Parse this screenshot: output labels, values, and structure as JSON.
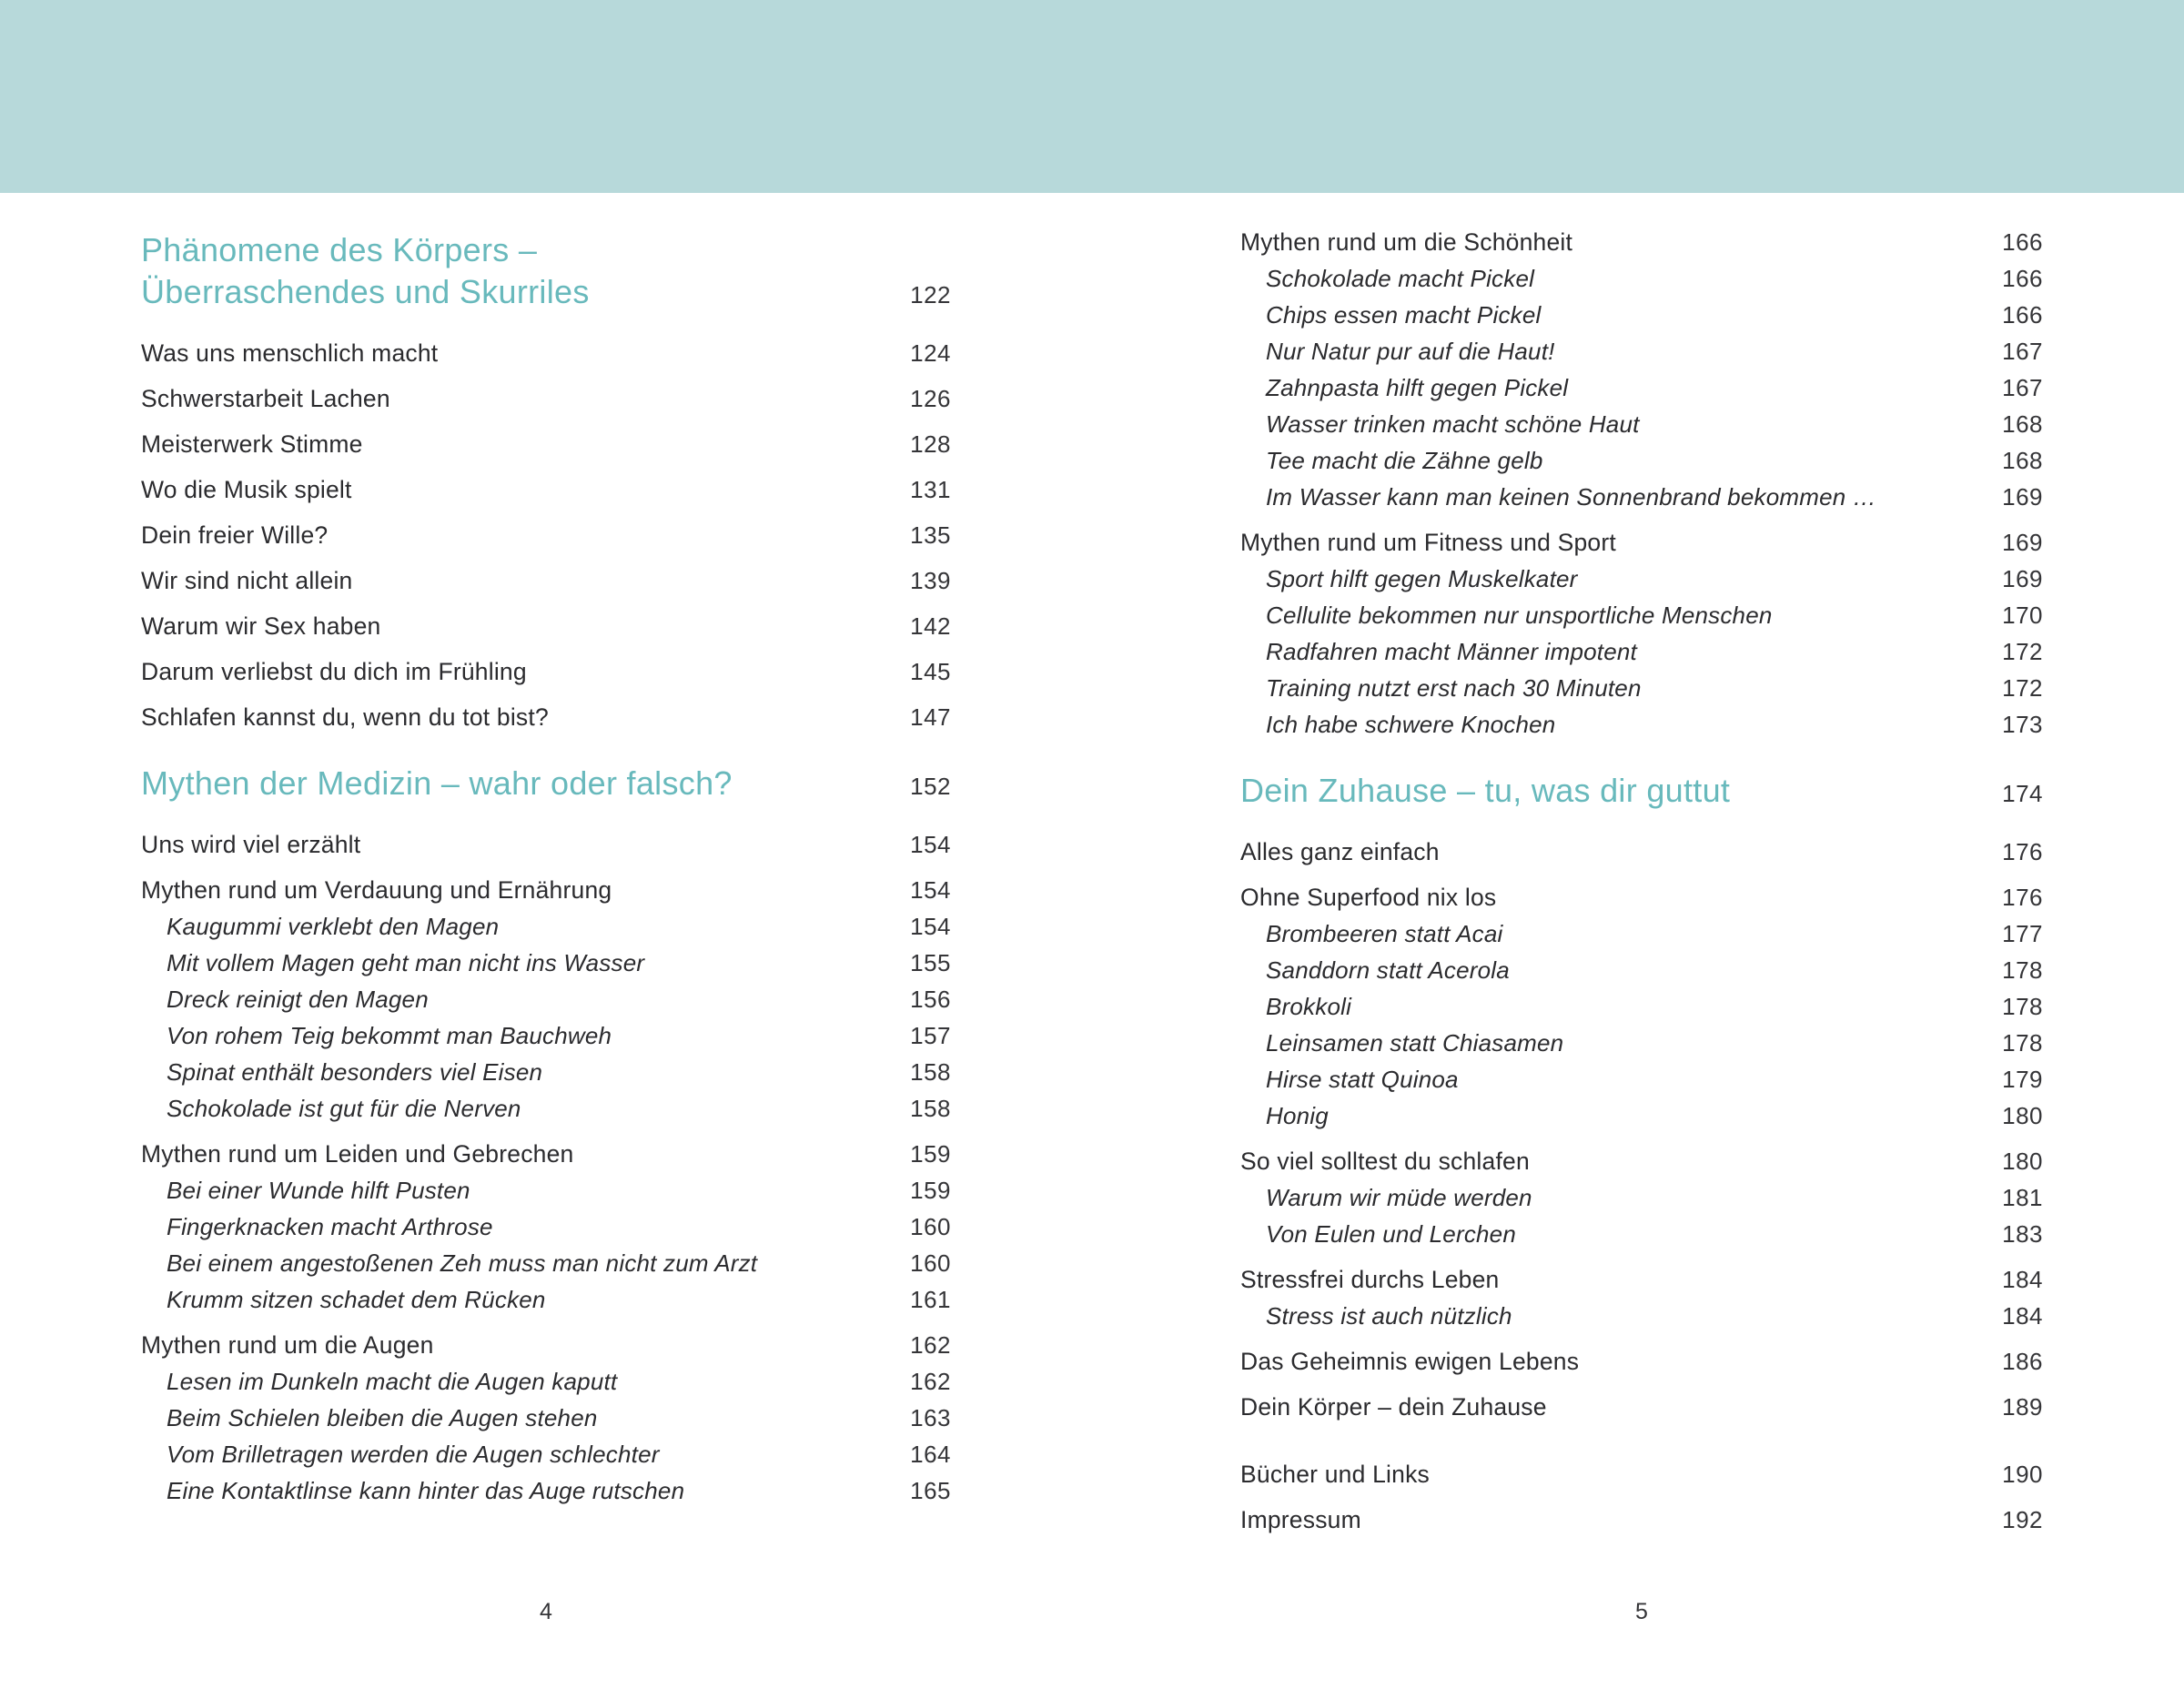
{
  "colors": {
    "header_band": "#b7d9da",
    "chapter_accent": "#68b9bc",
    "body_text": "#2b2b2e",
    "page_background": "#ffffff"
  },
  "left_page": {
    "folio": "4",
    "blocks": [
      {
        "type": "chapter",
        "lines": [
          "Phänomene des Körpers –",
          "Überraschendes und Skurriles"
        ],
        "page": "122"
      },
      {
        "type": "entry",
        "text": "Was uns menschlich macht",
        "page": "124"
      },
      {
        "type": "entry",
        "text": "Schwerstarbeit Lachen",
        "page": "126"
      },
      {
        "type": "entry",
        "text": "Meisterwerk Stimme",
        "page": "128"
      },
      {
        "type": "entry",
        "text": "Wo die Musik spielt",
        "page": "131"
      },
      {
        "type": "entry",
        "text": "Dein freier Wille?",
        "page": "135"
      },
      {
        "type": "entry",
        "text": "Wir sind nicht allein",
        "page": "139"
      },
      {
        "type": "entry",
        "text": "Warum wir Sex haben",
        "page": "142"
      },
      {
        "type": "entry",
        "text": "Darum verliebst du dich im Frühling",
        "page": "145"
      },
      {
        "type": "entry",
        "text": "Schlafen kannst du, wenn du tot bist?",
        "page": "147"
      },
      {
        "type": "chapter",
        "lines": [
          "Mythen der Medizin – wahr oder falsch?"
        ],
        "page": "152"
      },
      {
        "type": "entry",
        "text": "Uns wird viel erzählt",
        "page": "154"
      },
      {
        "type": "entry",
        "text": "Mythen rund um Verdauung und Ernährung",
        "page": "154"
      },
      {
        "type": "sub",
        "text": "Kaugummi verklebt den Magen",
        "page": "154"
      },
      {
        "type": "sub",
        "text": "Mit vollem Magen geht man nicht ins Wasser",
        "page": "155"
      },
      {
        "type": "sub",
        "text": "Dreck reinigt den Magen",
        "page": "156"
      },
      {
        "type": "sub",
        "text": "Von rohem Teig bekommt man Bauchweh",
        "page": "157"
      },
      {
        "type": "sub",
        "text": "Spinat enthält besonders viel Eisen",
        "page": "158"
      },
      {
        "type": "sub",
        "text": "Schokolade ist gut für die Nerven",
        "page": "158"
      },
      {
        "type": "entry",
        "text": "Mythen rund um Leiden und Gebrechen",
        "page": "159"
      },
      {
        "type": "sub",
        "text": "Bei einer Wunde hilft Pusten",
        "page": "159"
      },
      {
        "type": "sub",
        "text": "Fingerknacken macht Arthrose",
        "page": "160"
      },
      {
        "type": "sub",
        "text": "Bei einem angestoßenen Zeh muss man nicht zum Arzt",
        "page": "160"
      },
      {
        "type": "sub",
        "text": "Krumm sitzen schadet dem Rücken",
        "page": "161"
      },
      {
        "type": "entry",
        "text": "Mythen rund um die Augen",
        "page": "162"
      },
      {
        "type": "sub",
        "text": "Lesen im Dunkeln macht die Augen kaputt",
        "page": "162"
      },
      {
        "type": "sub",
        "text": "Beim Schielen bleiben die Augen stehen",
        "page": "163"
      },
      {
        "type": "sub",
        "text": "Vom Brilletragen werden die Augen schlechter",
        "page": "164"
      },
      {
        "type": "sub",
        "text": "Eine Kontaktlinse kann hinter das Auge rutschen",
        "page": "165"
      }
    ]
  },
  "right_page": {
    "folio": "5",
    "blocks": [
      {
        "type": "entry",
        "text": "Mythen rund um die Schönheit",
        "page": "166"
      },
      {
        "type": "sub",
        "text": "Schokolade macht Pickel",
        "page": "166"
      },
      {
        "type": "sub",
        "text": "Chips essen macht Pickel",
        "page": "166"
      },
      {
        "type": "sub",
        "text": "Nur Natur pur auf die Haut!",
        "page": "167"
      },
      {
        "type": "sub",
        "text": "Zahnpasta hilft gegen Pickel",
        "page": "167"
      },
      {
        "type": "sub",
        "text": "Wasser trinken macht schöne Haut",
        "page": "168"
      },
      {
        "type": "sub",
        "text": "Tee macht die Zähne gelb",
        "page": "168"
      },
      {
        "type": "sub",
        "text": "Im Wasser kann man keinen Sonnenbrand bekommen …",
        "page": "169"
      },
      {
        "type": "entry",
        "text": "Mythen rund um Fitness und Sport",
        "page": "169"
      },
      {
        "type": "sub",
        "text": "Sport hilft gegen Muskelkater",
        "page": "169"
      },
      {
        "type": "sub",
        "text": "Cellulite bekommen nur unsportliche Menschen",
        "page": "170"
      },
      {
        "type": "sub",
        "text": "Radfahren macht Männer impotent",
        "page": "172"
      },
      {
        "type": "sub",
        "text": "Training nutzt erst nach 30 Minuten",
        "page": "172"
      },
      {
        "type": "sub",
        "text": "Ich habe schwere Knochen",
        "page": "173"
      },
      {
        "type": "chapter",
        "lines": [
          "Dein Zuhause – tu, was dir guttut"
        ],
        "page": "174"
      },
      {
        "type": "entry",
        "text": "Alles ganz einfach",
        "page": "176"
      },
      {
        "type": "entry",
        "text": "Ohne Superfood nix los",
        "page": "176"
      },
      {
        "type": "sub",
        "text": "Brombeeren statt Acai",
        "page": "177"
      },
      {
        "type": "sub",
        "text": "Sanddorn statt Acerola",
        "page": "178"
      },
      {
        "type": "sub",
        "text": "Brokkoli",
        "page": "178"
      },
      {
        "type": "sub",
        "text": "Leinsamen statt Chiasamen",
        "page": "178"
      },
      {
        "type": "sub",
        "text": "Hirse statt Quinoa",
        "page": "179"
      },
      {
        "type": "sub",
        "text": "Honig",
        "page": "180"
      },
      {
        "type": "entry",
        "text": "So viel solltest du schlafen",
        "page": "180"
      },
      {
        "type": "sub",
        "text": "Warum wir müde werden",
        "page": "181"
      },
      {
        "type": "sub",
        "text": "Von Eulen und Lerchen",
        "page": "183"
      },
      {
        "type": "entry",
        "text": "Stressfrei durchs Leben",
        "page": "184"
      },
      {
        "type": "sub",
        "text": "Stress ist auch nützlich",
        "page": "184"
      },
      {
        "type": "entry",
        "text": "Das Geheimnis ewigen Lebens",
        "page": "186"
      },
      {
        "type": "entry",
        "text": "Dein Körper – dein Zuhause",
        "page": "189"
      },
      {
        "type": "entry",
        "text": "Bücher und Links",
        "page": "190",
        "gap_before": true
      },
      {
        "type": "entry",
        "text": "Impressum",
        "page": "192"
      }
    ]
  }
}
